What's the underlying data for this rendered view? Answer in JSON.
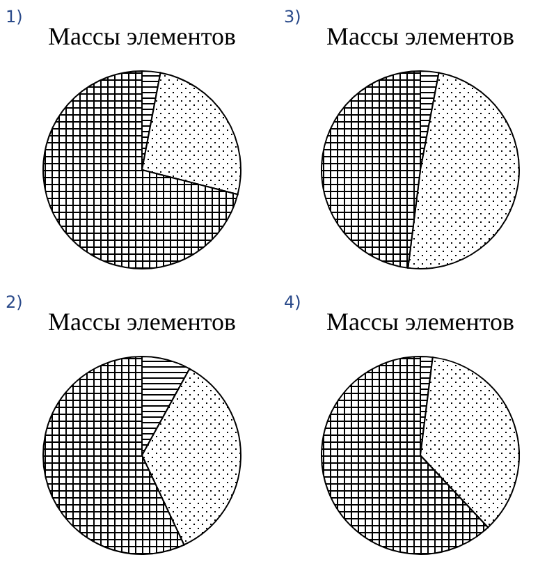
{
  "chart_data": [
    {
      "type": "pie",
      "title": "Массы элементов",
      "annotations": [
        "1)"
      ],
      "categories": [
        null,
        null,
        null
      ],
      "values": [
        3,
        26,
        71
      ],
      "colors": [
        "#000000",
        "#000000",
        "#000000"
      ]
    },
    {
      "type": "pie",
      "title": "Массы элементов",
      "annotations": [
        "3)"
      ],
      "categories": [
        null,
        null,
        null
      ],
      "values": [
        3,
        49,
        48
      ],
      "colors": [
        "#000000",
        "#000000",
        "#000000"
      ]
    },
    {
      "type": "pie",
      "title": "Массы элементов",
      "annotations": [
        "2)"
      ],
      "categories": [
        null,
        null,
        null
      ],
      "values": [
        8,
        35,
        57
      ],
      "colors": [
        "#000000",
        "#000000",
        "#000000"
      ]
    },
    {
      "type": "pie",
      "title": "Массы элементов",
      "annotations": [
        "4)"
      ],
      "categories": [
        null,
        null,
        null
      ],
      "values": [
        2,
        36,
        62
      ],
      "colors": [
        "#000000",
        "#000000",
        "#000000"
      ]
    }
  ]
}
